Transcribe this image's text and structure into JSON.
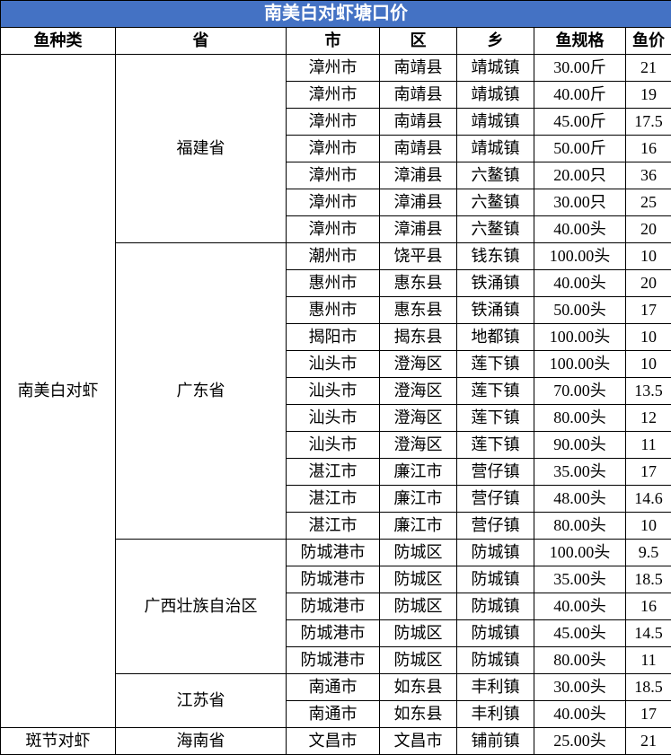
{
  "title": "南美白对虾塘口价",
  "headers": {
    "species": "鱼种类",
    "province": "省",
    "city": "市",
    "district": "区",
    "township": "乡",
    "spec": "鱼规格",
    "price": "鱼价"
  },
  "colors": {
    "header_bg": "#4472c4",
    "header_fg": "#ffffff",
    "border": "#000000"
  },
  "species": [
    {
      "name": "南美白对虾",
      "provinces": [
        {
          "name": "福建省",
          "rows": [
            {
              "city": "漳州市",
              "district": "南靖县",
              "township": "靖城镇",
              "spec": "30.00斤",
              "price": "21"
            },
            {
              "city": "漳州市",
              "district": "南靖县",
              "township": "靖城镇",
              "spec": "40.00斤",
              "price": "19"
            },
            {
              "city": "漳州市",
              "district": "南靖县",
              "township": "靖城镇",
              "spec": "45.00斤",
              "price": "17.5"
            },
            {
              "city": "漳州市",
              "district": "南靖县",
              "township": "靖城镇",
              "spec": "50.00斤",
              "price": "16"
            },
            {
              "city": "漳州市",
              "district": "漳浦县",
              "township": "六鳌镇",
              "spec": "20.00只",
              "price": "36"
            },
            {
              "city": "漳州市",
              "district": "漳浦县",
              "township": "六鳌镇",
              "spec": "30.00只",
              "price": "25"
            },
            {
              "city": "漳州市",
              "district": "漳浦县",
              "township": "六鳌镇",
              "spec": "40.00头",
              "price": "20"
            }
          ]
        },
        {
          "name": "广东省",
          "rows": [
            {
              "city": "潮州市",
              "district": "饶平县",
              "township": "钱东镇",
              "spec": "100.00头",
              "price": "10"
            },
            {
              "city": "惠州市",
              "district": "惠东县",
              "township": "铁涌镇",
              "spec": "40.00头",
              "price": "20"
            },
            {
              "city": "惠州市",
              "district": "惠东县",
              "township": "铁涌镇",
              "spec": "50.00头",
              "price": "17"
            },
            {
              "city": "揭阳市",
              "district": "揭东县",
              "township": "地都镇",
              "spec": "100.00头",
              "price": "10"
            },
            {
              "city": "汕头市",
              "district": "澄海区",
              "township": "莲下镇",
              "spec": "100.00头",
              "price": "10"
            },
            {
              "city": "汕头市",
              "district": "澄海区",
              "township": "莲下镇",
              "spec": "70.00头",
              "price": "13.5"
            },
            {
              "city": "汕头市",
              "district": "澄海区",
              "township": "莲下镇",
              "spec": "80.00头",
              "price": "12"
            },
            {
              "city": "汕头市",
              "district": "澄海区",
              "township": "莲下镇",
              "spec": "90.00头",
              "price": "11"
            },
            {
              "city": "湛江市",
              "district": "廉江市",
              "township": "营仔镇",
              "spec": "35.00头",
              "price": "17"
            },
            {
              "city": "湛江市",
              "district": "廉江市",
              "township": "营仔镇",
              "spec": "48.00头",
              "price": "14.6"
            },
            {
              "city": "湛江市",
              "district": "廉江市",
              "township": "营仔镇",
              "spec": "80.00头",
              "price": "10"
            }
          ]
        },
        {
          "name": "广西壮族自治区",
          "rows": [
            {
              "city": "防城港市",
              "district": "防城区",
              "township": "防城镇",
              "spec": "100.00头",
              "price": "9.5"
            },
            {
              "city": "防城港市",
              "district": "防城区",
              "township": "防城镇",
              "spec": "35.00头",
              "price": "18.5"
            },
            {
              "city": "防城港市",
              "district": "防城区",
              "township": "防城镇",
              "spec": "40.00头",
              "price": "16"
            },
            {
              "city": "防城港市",
              "district": "防城区",
              "township": "防城镇",
              "spec": "45.00头",
              "price": "14.5"
            },
            {
              "city": "防城港市",
              "district": "防城区",
              "township": "防城镇",
              "spec": "80.00头",
              "price": "11"
            }
          ]
        },
        {
          "name": "江苏省",
          "rows": [
            {
              "city": "南通市",
              "district": "如东县",
              "township": "丰利镇",
              "spec": "30.00头",
              "price": "18.5"
            },
            {
              "city": "南通市",
              "district": "如东县",
              "township": "丰利镇",
              "spec": "40.00头",
              "price": "17"
            }
          ]
        }
      ]
    },
    {
      "name": "斑节对虾",
      "provinces": [
        {
          "name": "海南省",
          "rows": [
            {
              "city": "文昌市",
              "district": "文昌市",
              "township": "铺前镇",
              "spec": "25.00头",
              "price": "21"
            }
          ]
        }
      ]
    }
  ]
}
